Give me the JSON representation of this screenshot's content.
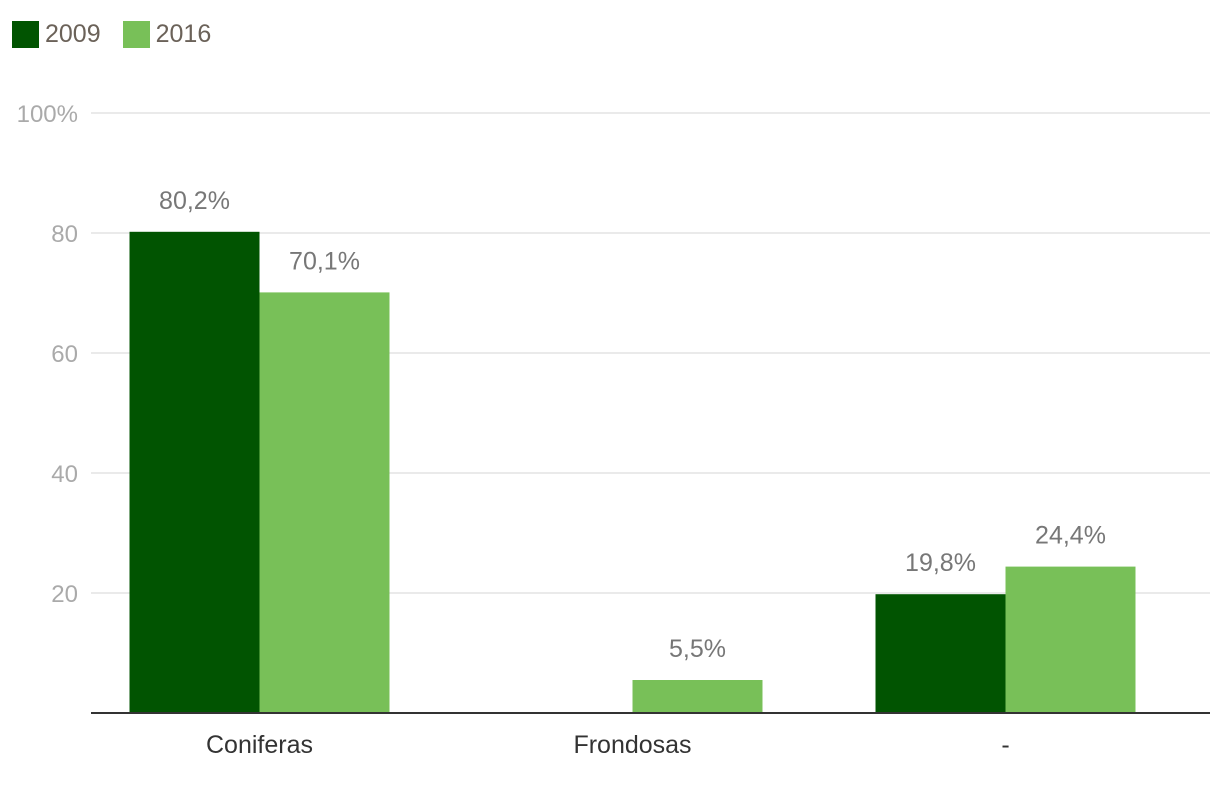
{
  "legend": [
    {
      "label": "2009",
      "color": "#015401"
    },
    {
      "label": "2016",
      "color": "#78c058"
    }
  ],
  "chart_data": {
    "type": "bar",
    "categories": [
      "Coniferas",
      "Frondosas",
      "-"
    ],
    "series": [
      {
        "name": "2009",
        "color": "#015401",
        "values": [
          80.2,
          null,
          19.8
        ],
        "labels": [
          "80,2%",
          "",
          "19,8%"
        ]
      },
      {
        "name": "2016",
        "color": "#78c058",
        "values": [
          70.1,
          5.5,
          24.4
        ],
        "labels": [
          "70,1%",
          "5,5%",
          "24,4%"
        ]
      }
    ],
    "ylim": [
      0,
      100
    ],
    "yticks": [
      {
        "value": 20,
        "label": "20"
      },
      {
        "value": 40,
        "label": "40"
      },
      {
        "value": 60,
        "label": "60"
      },
      {
        "value": 80,
        "label": "80"
      },
      {
        "value": 100,
        "label": "100%"
      }
    ],
    "title": "",
    "xlabel": "",
    "ylabel": "",
    "grid": true,
    "legend_position": "top-left"
  }
}
